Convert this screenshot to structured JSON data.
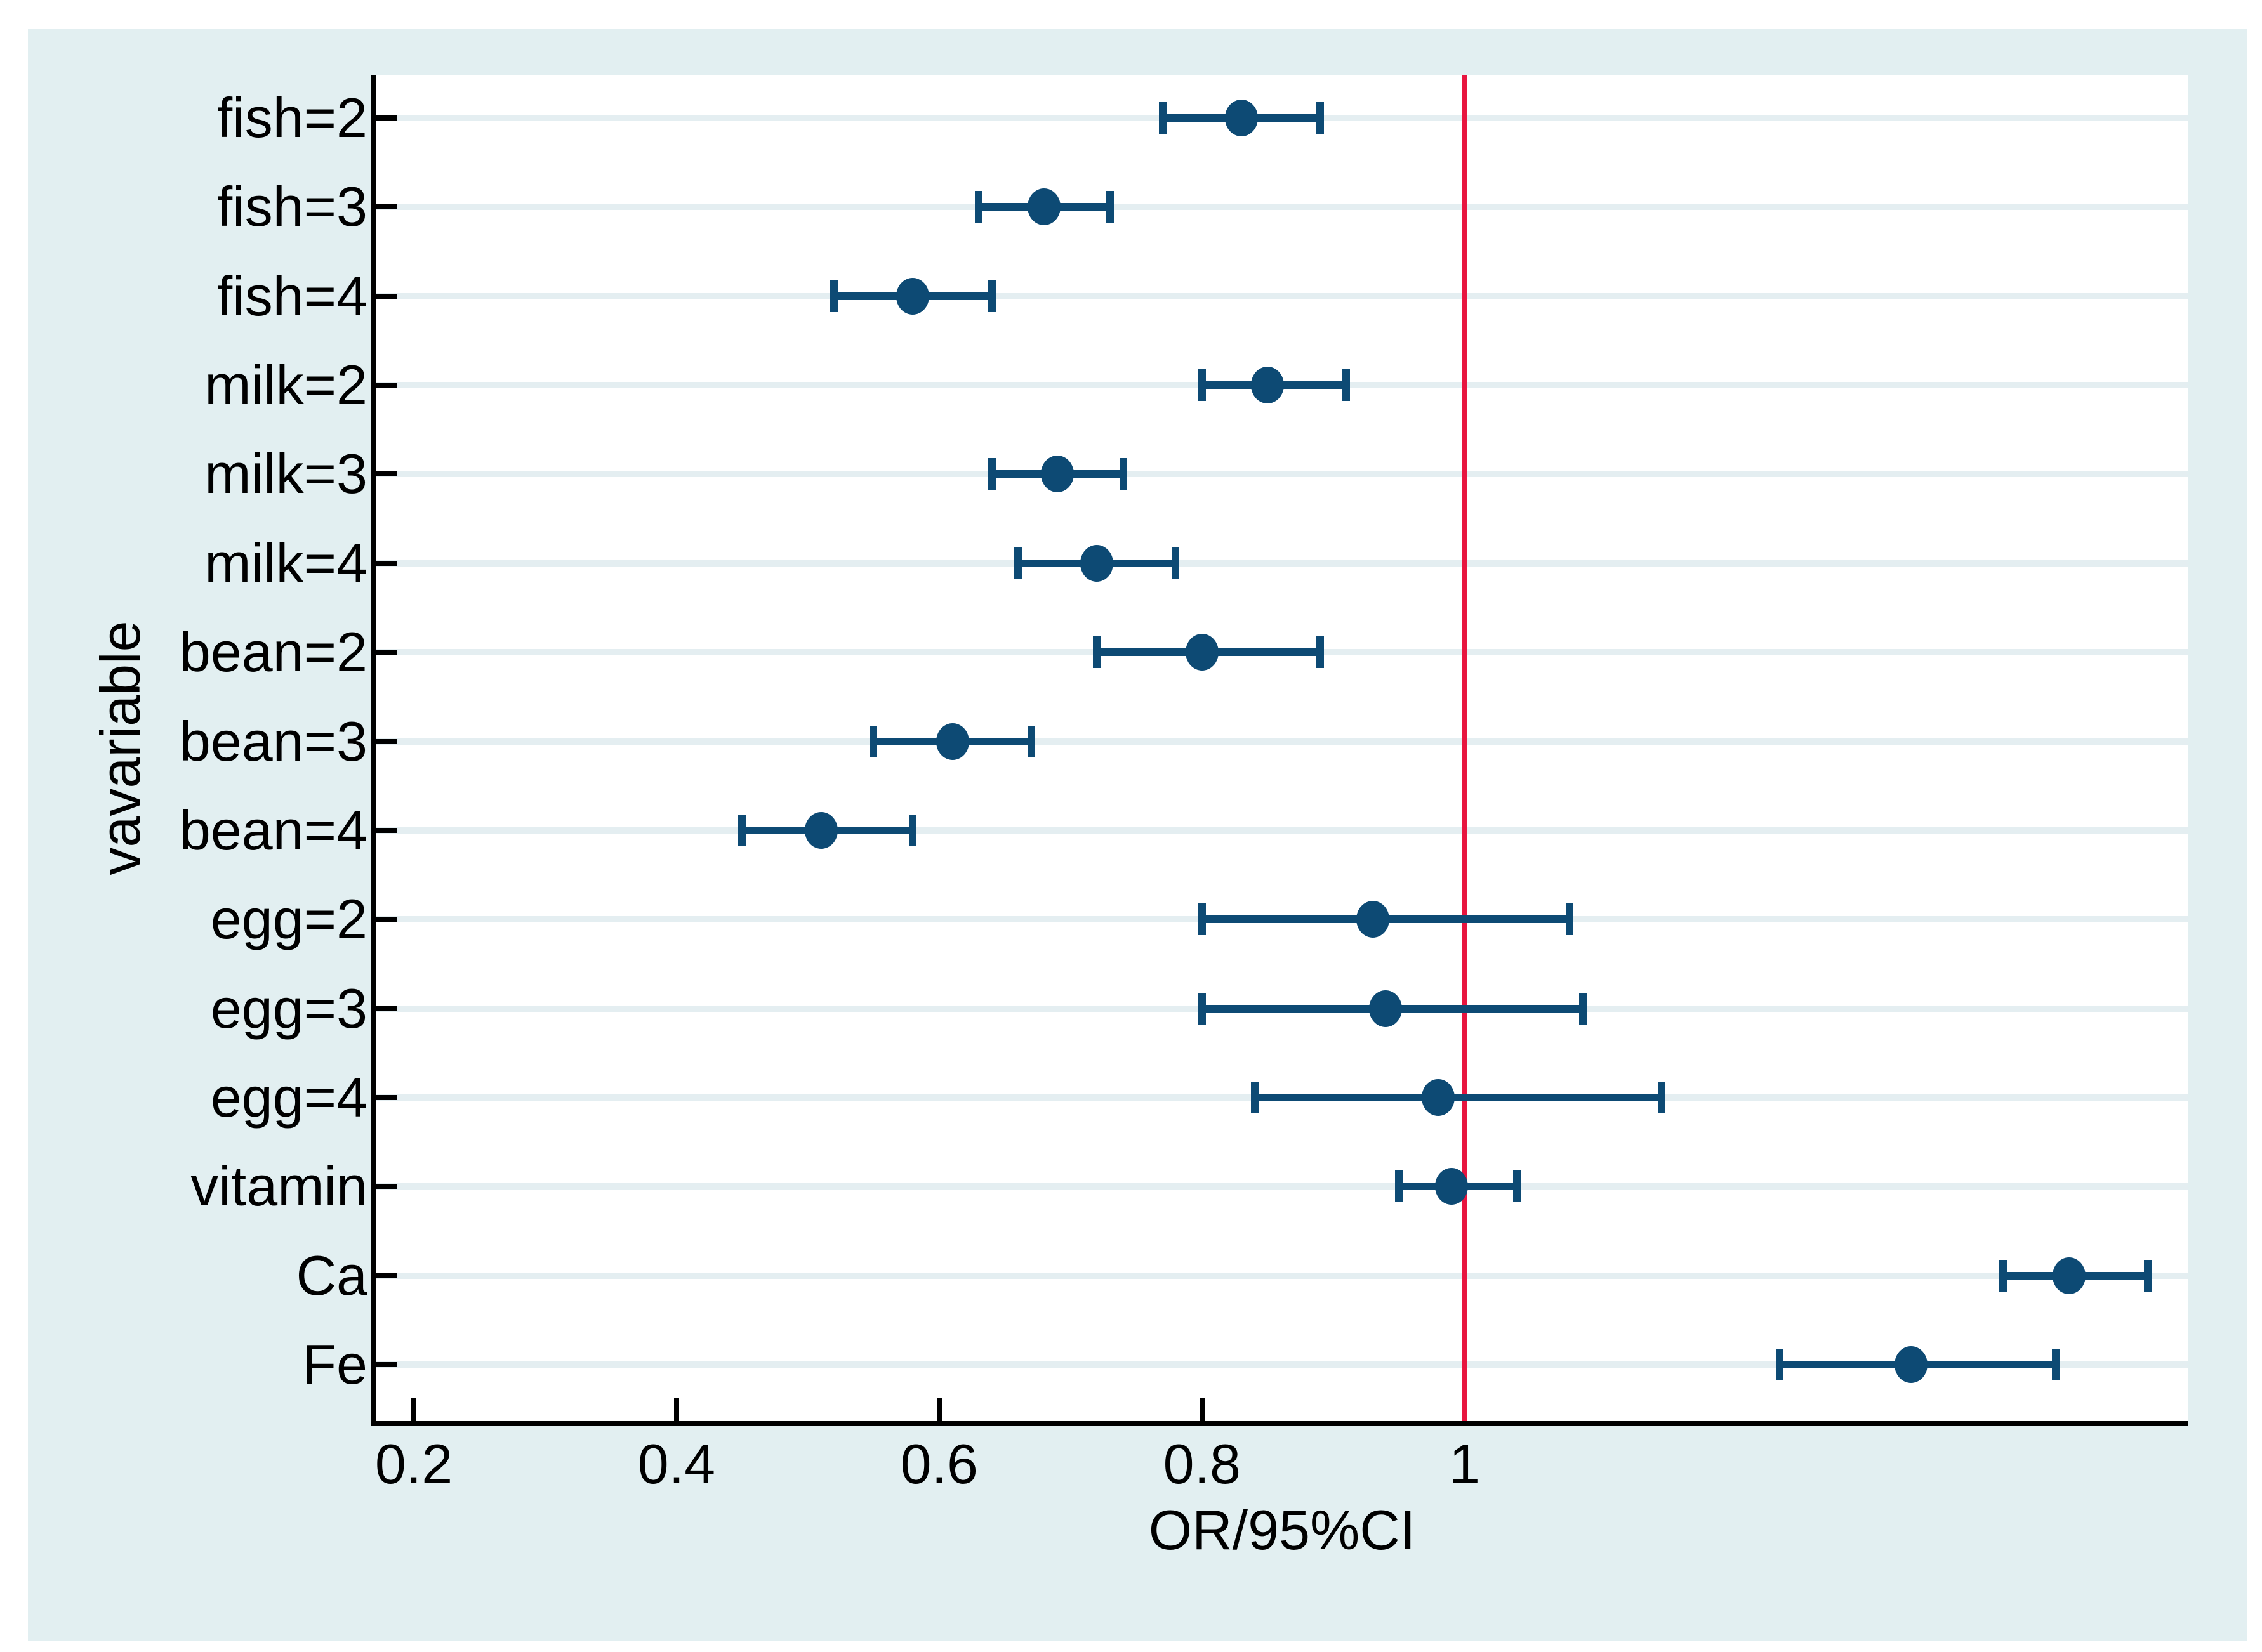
{
  "chart_data": {
    "type": "scatter",
    "subtype": "forest-plot",
    "title": "",
    "xlabel": "OR/95%CI",
    "ylabel": "vavariable",
    "xlim": [
      0.171,
      1.551
    ],
    "xticks": [
      0.2,
      0.4,
      0.6,
      0.8,
      1
    ],
    "xtick_labels": [
      "0.2",
      "0.4",
      "0.6",
      "0.8",
      "1"
    ],
    "reference_line_x": 1,
    "grid": "horizontal-per-category",
    "legend": "none",
    "categories": [
      "fish=2",
      "fish=3",
      "fish=4",
      "milk=2",
      "milk=3",
      "milk=4",
      "bean=2",
      "bean=3",
      "bean=4",
      "egg=2",
      "egg=3",
      "egg=4",
      "vitamin",
      "Ca",
      "Fe"
    ],
    "series": [
      {
        "name": "OR with 95% CI",
        "points": [
          {
            "label": "fish=2",
            "or": 0.83,
            "lo": 0.77,
            "hi": 0.89
          },
          {
            "label": "fish=3",
            "or": 0.68,
            "lo": 0.63,
            "hi": 0.73
          },
          {
            "label": "fish=4",
            "or": 0.58,
            "lo": 0.52,
            "hi": 0.64
          },
          {
            "label": "milk=2",
            "or": 0.85,
            "lo": 0.8,
            "hi": 0.91
          },
          {
            "label": "milk=3",
            "or": 0.69,
            "lo": 0.64,
            "hi": 0.74
          },
          {
            "label": "milk=4",
            "or": 0.72,
            "lo": 0.66,
            "hi": 0.78
          },
          {
            "label": "bean=2",
            "or": 0.8,
            "lo": 0.72,
            "hi": 0.89
          },
          {
            "label": "bean=3",
            "or": 0.61,
            "lo": 0.55,
            "hi": 0.67
          },
          {
            "label": "bean=4",
            "or": 0.51,
            "lo": 0.45,
            "hi": 0.58
          },
          {
            "label": "egg=2",
            "or": 0.93,
            "lo": 0.8,
            "hi": 1.08
          },
          {
            "label": "egg=3",
            "or": 0.94,
            "lo": 0.8,
            "hi": 1.09
          },
          {
            "label": "egg=4",
            "or": 0.98,
            "lo": 0.84,
            "hi": 1.15
          },
          {
            "label": "vitamin",
            "or": 0.99,
            "lo": 0.95,
            "hi": 1.04
          },
          {
            "label": "Ca",
            "or": 1.46,
            "lo": 1.41,
            "hi": 1.52
          },
          {
            "label": "Fe",
            "or": 1.34,
            "lo": 1.24,
            "hi": 1.45
          }
        ]
      }
    ],
    "colors": {
      "marker": "#0d4a74",
      "ci_line": "#0d4a74",
      "reference_line": "#e8153f",
      "plot_background": "#ffffff",
      "figure_background": "#e2eff1",
      "page_background": "#ffffff",
      "gridline": "#e4eef1",
      "axis": "#000000",
      "text": "#000000"
    }
  }
}
